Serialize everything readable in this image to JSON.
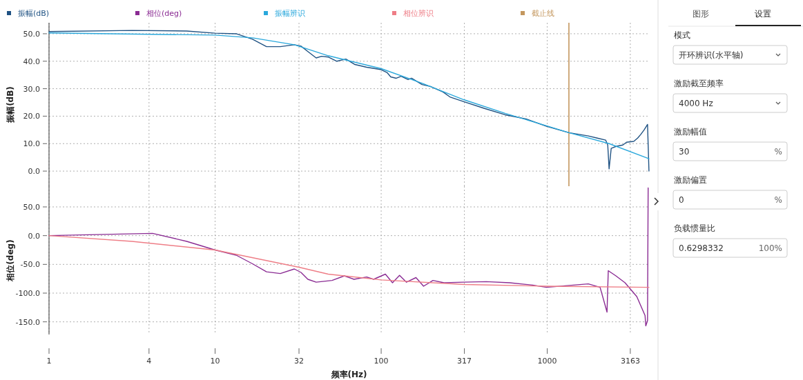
{
  "chart_data": [
    {
      "type": "line",
      "ylabel": "振幅(dB)",
      "log": "x",
      "xlim": [
        1,
        4100
      ],
      "xticks": [
        1,
        4,
        10,
        32,
        100,
        317,
        1000,
        3163
      ],
      "ylim": [
        -5.5,
        54
      ],
      "yticks": [
        {
          "value": 0,
          "label": "0.0"
        },
        {
          "value": 10,
          "label": "10.0"
        },
        {
          "value": 20,
          "label": "20.0"
        },
        {
          "value": 30,
          "label": "30.0"
        },
        {
          "value": 40,
          "label": "40.0"
        },
        {
          "value": 50,
          "label": "50.0"
        }
      ],
      "tick_labels": "y",
      "grid": true,
      "legend": "top",
      "marker": "none",
      "line_style": "solid",
      "ref_lines": [
        {
          "axis": "x",
          "value": 1350,
          "label": "截止线",
          "color": "#c4975e"
        }
      ],
      "series": [
        {
          "name": "振幅(dB)",
          "color": "#1f5283",
          "x": [
            1,
            3.16,
            6.75,
            10,
            13.4,
            16.8,
            20.4,
            24.7,
            30,
            32.9,
            36.2,
            40.6,
            43.8,
            48.2,
            54.1,
            61.3,
            69.5,
            81.8,
            99,
            108.8,
            114.2,
            123.3,
            131.9,
            145.2,
            152.4,
            176.3,
            197.9,
            235.7,
            259.3,
            314,
            419,
            558,
            743,
            989,
            1350,
            1767,
            2000,
            2246,
            2313,
            2357,
            2427,
            2600,
            2854,
            3000,
            3318,
            3500,
            3650,
            3830,
            4016,
            4096
          ],
          "values": [
            50.8,
            51.2,
            51,
            50.2,
            50,
            48,
            45.3,
            45.3,
            46,
            45.5,
            43.5,
            41.2,
            41.8,
            41.5,
            40,
            40.8,
            38.8,
            37.8,
            37,
            35.8,
            34.3,
            33.8,
            34.5,
            33.3,
            33.8,
            31.5,
            30.8,
            28.8,
            27,
            25.3,
            22.8,
            20.5,
            19,
            16.3,
            14,
            12.8,
            12,
            11.3,
            9.5,
            0.8,
            8.3,
            9,
            9.5,
            10.5,
            10.8,
            12,
            13.3,
            15,
            17,
            0
          ]
        },
        {
          "name": "振幅辨识",
          "color": "#2aa8dc",
          "x": [
            1,
            10,
            16.8,
            30,
            48,
            100,
            176,
            314,
            558,
            989,
            1350,
            2357,
            4096
          ],
          "values": [
            50.3,
            49.5,
            48.5,
            46,
            42,
            37.3,
            32,
            26,
            21,
            16.5,
            14,
            10,
            4.5
          ]
        }
      ]
    },
    {
      "type": "line",
      "ylabel": "相位(deg)",
      "xlabel": "频率(Hz)",
      "log": "x",
      "xlim": [
        1,
        4100
      ],
      "xticks": [
        1,
        4,
        10,
        32,
        100,
        317,
        1000,
        3163
      ],
      "ylim": [
        -172,
        86
      ],
      "yticks": [
        {
          "value": -150,
          "label": "-150.0"
        },
        {
          "value": -100,
          "label": "-100.0"
        },
        {
          "value": -50,
          "label": "-50.0"
        },
        {
          "value": 0,
          "label": "0.0"
        },
        {
          "value": 50,
          "label": "50.0"
        }
      ],
      "grid": true,
      "legend": "top",
      "marker": "none",
      "line_style": "solid",
      "series": [
        {
          "name": "相位(deg)",
          "color": "#8a2b93",
          "x": [
            1,
            4.2,
            6.75,
            10,
            13.4,
            16.8,
            20.4,
            24.7,
            30,
            32.9,
            36.2,
            40.6,
            50.6,
            60,
            68.6,
            81.8,
            90,
            106,
            117,
            129,
            142,
            162,
            180,
            205,
            239,
            314,
            429,
            594,
            817,
            989,
            1317,
            1767,
            2080,
            2290,
            2330,
            2590,
            2940,
            3460,
            3880,
            3920,
            4016,
            4050
          ],
          "values": [
            0,
            4,
            -10,
            -25,
            -34,
            -49,
            -63,
            -66,
            -58,
            -64,
            -76,
            -81,
            -78,
            -70,
            -76,
            -72,
            -76,
            -67,
            -82,
            -69,
            -81,
            -73,
            -88,
            -78,
            -82,
            -81,
            -80,
            -82,
            -86,
            -90,
            -87,
            -84,
            -90,
            -133,
            -61,
            -70,
            -82,
            -106,
            -139,
            -157,
            -148,
            83
          ]
        },
        {
          "name": "相位辨识",
          "color": "#ee7d86",
          "x": [
            1,
            3.16,
            10,
            32,
            48,
            100,
            317,
            1000,
            4096
          ],
          "values": [
            0,
            -10,
            -25,
            -55,
            -67,
            -77,
            -85,
            -88,
            -90
          ]
        }
      ]
    },
    {
      "type": "other",
      "annotations": [
        "图形",
        "设置",
        "模式",
        "开环辨识(水平轴)",
        "激励截至频率",
        "4000 Hz",
        "激励幅值",
        "30",
        "%",
        "激励偏置",
        "0",
        "%",
        "负载惯量比",
        "0.6298332",
        "100%"
      ]
    }
  ]
}
